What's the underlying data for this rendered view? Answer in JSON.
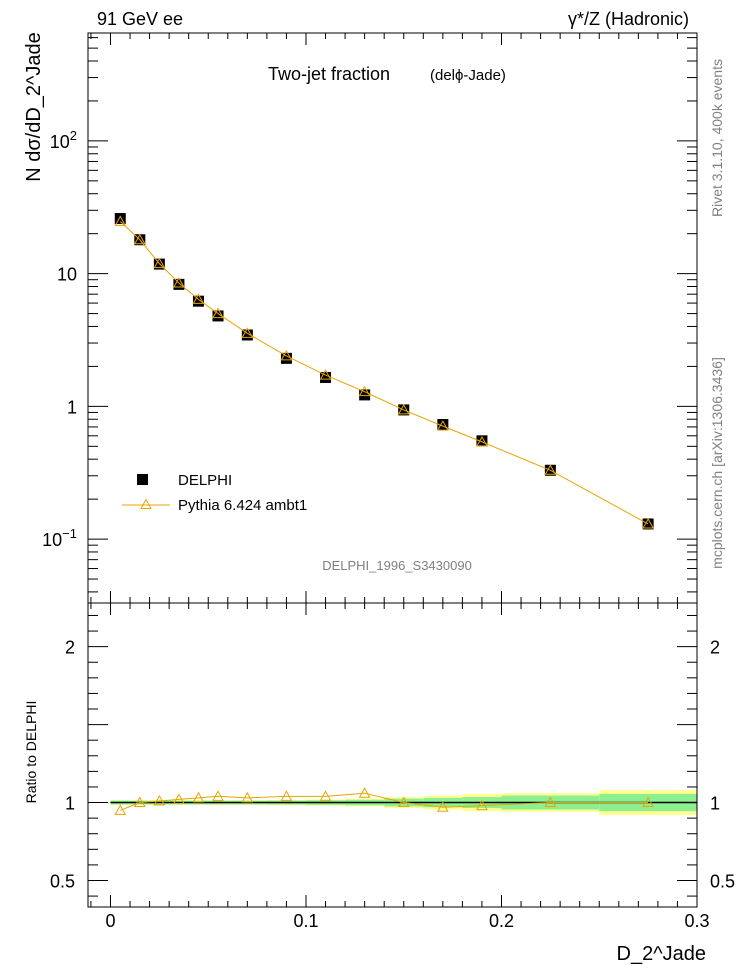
{
  "header": {
    "left": "91 GeV ee",
    "right": "γ*/Z (Hadronic)"
  },
  "side_text": {
    "rivet": "Rivet 3.1.10,  400k events",
    "mcplots": "mcplots.cern.ch [arXiv:1306.3436]"
  },
  "chart_data": [
    {
      "type": "scatter",
      "panel": "main",
      "title": "Two-jet fraction",
      "subtitle": "(delϕ-Jade)",
      "watermark": "DELPHI_1996_S3430090",
      "ylabel": "N dσ/dD_2^Jade",
      "yscale": "log",
      "xlim": [
        -0.0115,
        0.3
      ],
      "ylim": [
        0.033,
        650
      ],
      "yticks": [
        {
          "value": 0.1,
          "label": "10^-1"
        },
        {
          "value": 1,
          "label": "1"
        },
        {
          "value": 10,
          "label": "10"
        },
        {
          "value": 100,
          "label": "10^2"
        }
      ],
      "legend": {
        "placement": "bottom-left"
      },
      "series": [
        {
          "name": "DELPHI",
          "marker": "filled-square",
          "color": "#000000",
          "x": [
            0.005,
            0.015,
            0.025,
            0.035,
            0.045,
            0.055,
            0.07,
            0.09,
            0.11,
            0.13,
            0.15,
            0.17,
            0.19,
            0.225,
            0.275
          ],
          "y": [
            26,
            18,
            11.8,
            8.3,
            6.2,
            4.8,
            3.45,
            2.3,
            1.65,
            1.22,
            0.94,
            0.73,
            0.55,
            0.33,
            0.13
          ]
        },
        {
          "name": "Pythia 6.424 ambt1",
          "marker": "open-triangle",
          "line": true,
          "color": "#e8a400",
          "x": [
            0.005,
            0.015,
            0.025,
            0.035,
            0.045,
            0.055,
            0.07,
            0.09,
            0.11,
            0.13,
            0.15,
            0.17,
            0.19,
            0.225,
            0.275
          ],
          "y": [
            24.7,
            18.0,
            11.9,
            8.5,
            6.4,
            5.0,
            3.55,
            2.4,
            1.72,
            1.29,
            0.94,
            0.71,
            0.54,
            0.33,
            0.13
          ]
        }
      ]
    },
    {
      "type": "line",
      "panel": "ratio",
      "ylabel": "Ratio to DELPHI",
      "xlabel": "D_2^Jade",
      "xlim": [
        -0.0115,
        0.3
      ],
      "ylim": [
        0.33,
        2.28
      ],
      "xticks": [
        {
          "value": 0,
          "label": "0"
        },
        {
          "value": 0.1,
          "label": "0.1"
        },
        {
          "value": 0.2,
          "label": "0.2"
        },
        {
          "value": 0.3,
          "label": "0.3"
        }
      ],
      "yticks": [
        {
          "value": 0.5,
          "label": "0.5"
        },
        {
          "value": 1,
          "label": "1"
        },
        {
          "value": 2,
          "label": "2"
        }
      ],
      "bands": {
        "bin_edges": [
          0,
          0.01,
          0.02,
          0.03,
          0.04,
          0.05,
          0.06,
          0.08,
          0.1,
          0.12,
          0.14,
          0.16,
          0.18,
          0.2,
          0.25,
          0.3
        ],
        "inner_halfwidth": [
          0.012,
          0.012,
          0.012,
          0.012,
          0.012,
          0.012,
          0.012,
          0.013,
          0.015,
          0.018,
          0.025,
          0.03,
          0.035,
          0.045,
          0.055
        ],
        "outer_halfwidth": [
          0.015,
          0.015,
          0.015,
          0.015,
          0.015,
          0.015,
          0.015,
          0.017,
          0.02,
          0.025,
          0.035,
          0.045,
          0.055,
          0.06,
          0.08
        ],
        "inner_color": "#8df090",
        "outer_color": "#ffff90",
        "center_color": "#000000"
      },
      "series": [
        {
          "name": "Pythia 6.424 ambt1",
          "marker": "open-triangle",
          "color": "#e8a400",
          "x": [
            0.005,
            0.015,
            0.025,
            0.035,
            0.045,
            0.055,
            0.07,
            0.09,
            0.11,
            0.13,
            0.15,
            0.17,
            0.19,
            0.225,
            0.275
          ],
          "y": [
            0.95,
            1.0,
            1.01,
            1.02,
            1.03,
            1.04,
            1.03,
            1.04,
            1.04,
            1.06,
            1.0,
            0.97,
            0.98,
            1.0,
            1.0
          ]
        }
      ]
    }
  ]
}
